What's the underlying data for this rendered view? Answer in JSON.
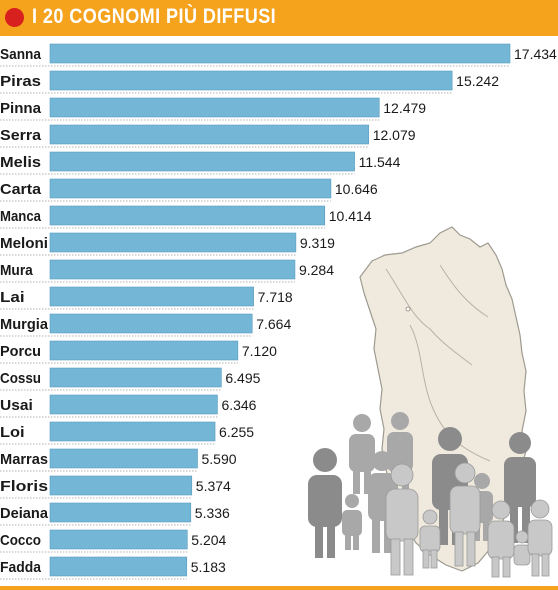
{
  "header": {
    "title": "I 20 COGNOMI PIÙ DIFFUSI"
  },
  "colors": {
    "header_bg": "#f5a21c",
    "dot": "#d8201f",
    "bar": "#73b6d6",
    "bar_stroke": "#5a9dbf"
  },
  "icons": {
    "header_icon": "red-dot-icon",
    "illustration": "sardinia-map-with-family-icon"
  },
  "chart_data": {
    "type": "bar",
    "orientation": "horizontal",
    "categories": [
      "Sanna",
      "Piras",
      "Pinna",
      "Serra",
      "Melis",
      "Carta",
      "Manca",
      "Meloni",
      "Mura",
      "Lai",
      "Murgia",
      "Porcu",
      "Cossu",
      "Usai",
      "Loi",
      "Marras",
      "Floris",
      "Deiana",
      "Cocco",
      "Fadda"
    ],
    "values": [
      17434,
      15242,
      12479,
      12079,
      11544,
      10646,
      10414,
      9319,
      9284,
      7718,
      7664,
      7120,
      6495,
      6346,
      6255,
      5590,
      5374,
      5336,
      5204,
      5183
    ],
    "value_labels": [
      "17.434",
      "15.242",
      "12.479",
      "12.079",
      "11.544",
      "10.646",
      "10.414",
      "9.319",
      "9.284",
      "7.718",
      "7.664",
      "7.120",
      "6.495",
      "6.346",
      "6.255",
      "5.590",
      "5.374",
      "5.336",
      "5.204",
      "5.183"
    ],
    "title": "I 20 COGNOMI PIÙ DIFFUSI",
    "xlim": [
      0,
      17434
    ],
    "grid": false
  }
}
